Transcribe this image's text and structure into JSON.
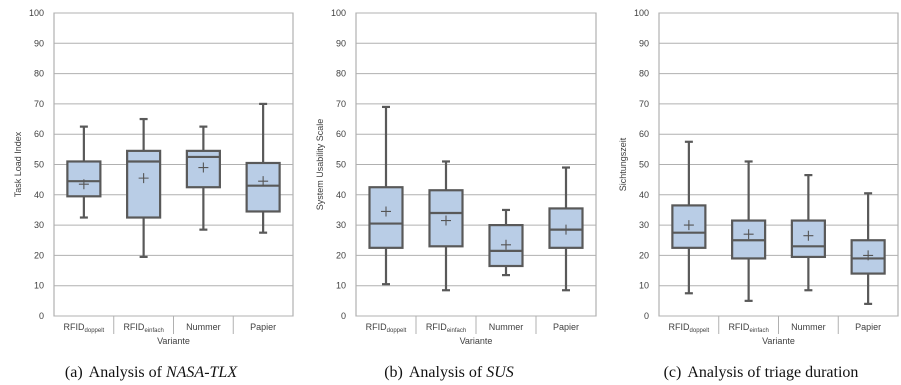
{
  "figure": {
    "captions": [
      {
        "label": "(a)",
        "text_before": "Analysis of ",
        "emphasis": "NASA-TLX",
        "text_after": ""
      },
      {
        "label": "(b)",
        "text_before": "Analysis of ",
        "emphasis": "SUS",
        "text_after": ""
      },
      {
        "label": "(c)",
        "text_before": "Analysis of triage duration",
        "emphasis": "",
        "text_after": ""
      }
    ]
  },
  "colors": {
    "box_fill": "#b9cde6",
    "box_stroke": "#595959",
    "grid": "#b0b0b0",
    "frame": "#a0a0a0",
    "text": "#404040"
  },
  "chart_data": [
    {
      "type": "box",
      "title": "",
      "xlabel": "Variante",
      "ylabel": "Task Load Index",
      "ylim": [
        0,
        100
      ],
      "yticks": [
        0,
        10,
        20,
        30,
        40,
        50,
        60,
        70,
        80,
        90,
        100
      ],
      "grid": true,
      "categories": [
        {
          "main": "RFID",
          "sub": "doppelt"
        },
        {
          "main": "RFID",
          "sub": "einfach"
        },
        {
          "main": "Nummer",
          "sub": ""
        },
        {
          "main": "Papier",
          "sub": ""
        }
      ],
      "boxes": [
        {
          "min": 32.5,
          "q1": 39.5,
          "median": 44.5,
          "q3": 51,
          "max": 62.5,
          "mean": 43.5
        },
        {
          "min": 19.5,
          "q1": 32.5,
          "median": 51,
          "q3": 54.5,
          "max": 65,
          "mean": 45.5
        },
        {
          "min": 28.5,
          "q1": 42.5,
          "median": 52.5,
          "q3": 54.5,
          "max": 62.5,
          "mean": 49
        },
        {
          "min": 27.5,
          "q1": 34.5,
          "median": 43,
          "q3": 50.5,
          "max": 70,
          "mean": 44.5
        }
      ]
    },
    {
      "type": "box",
      "title": "",
      "xlabel": "Variante",
      "ylabel": "System Usability Scale",
      "ylim": [
        0,
        100
      ],
      "yticks": [
        0,
        10,
        20,
        30,
        40,
        50,
        60,
        70,
        80,
        90,
        100
      ],
      "grid": true,
      "categories": [
        {
          "main": "RFID",
          "sub": "doppelt"
        },
        {
          "main": "RFID",
          "sub": "einfach"
        },
        {
          "main": "Nummer",
          "sub": ""
        },
        {
          "main": "Papier",
          "sub": ""
        }
      ],
      "boxes": [
        {
          "min": 10.5,
          "q1": 22.5,
          "median": 30.5,
          "q3": 42.5,
          "max": 69,
          "mean": 34.5
        },
        {
          "min": 8.5,
          "q1": 23,
          "median": 34,
          "q3": 41.5,
          "max": 51,
          "mean": 31.5
        },
        {
          "min": 13.5,
          "q1": 16.5,
          "median": 21.5,
          "q3": 30,
          "max": 35,
          "mean": 23.5
        },
        {
          "min": 8.5,
          "q1": 22.5,
          "median": 28.5,
          "q3": 35.5,
          "max": 49,
          "mean": 28.5
        }
      ]
    },
    {
      "type": "box",
      "title": "",
      "xlabel": "Variante",
      "ylabel": "Sichtungszeit",
      "ylim": [
        0,
        100
      ],
      "yticks": [
        0,
        10,
        20,
        30,
        40,
        50,
        60,
        70,
        80,
        90,
        100
      ],
      "grid": true,
      "categories": [
        {
          "main": "RFID",
          "sub": "doppelt"
        },
        {
          "main": "RFID",
          "sub": "einfach"
        },
        {
          "main": "Nummer",
          "sub": ""
        },
        {
          "main": "Papier",
          "sub": ""
        }
      ],
      "boxes": [
        {
          "min": 7.5,
          "q1": 22.5,
          "median": 27.5,
          "q3": 36.5,
          "max": 57.5,
          "mean": 30
        },
        {
          "min": 5,
          "q1": 19,
          "median": 25,
          "q3": 31.5,
          "max": 51,
          "mean": 27
        },
        {
          "min": 8.5,
          "q1": 19.5,
          "median": 23,
          "q3": 31.5,
          "max": 46.5,
          "mean": 26.5
        },
        {
          "min": 4,
          "q1": 14,
          "median": 19,
          "q3": 25,
          "max": 40.5,
          "mean": 20
        }
      ]
    }
  ]
}
